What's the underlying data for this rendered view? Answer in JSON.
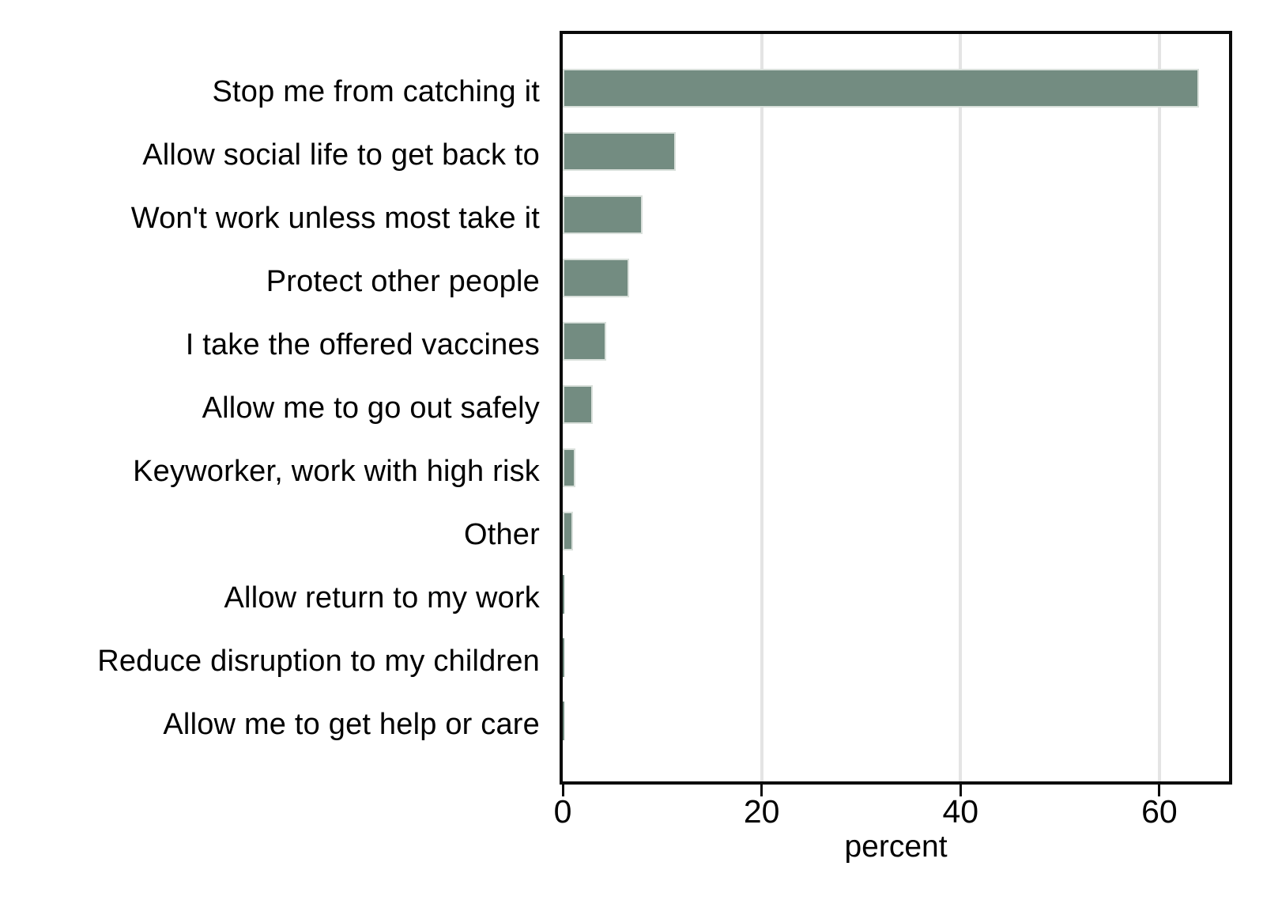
{
  "chart_data": {
    "type": "bar",
    "orientation": "horizontal",
    "title": "",
    "categories": [
      "Stop me from catching it",
      "Allow social life to get back to",
      "Won't work unless most take it",
      "Protect other people",
      "I take the offered vaccines",
      "Allow me to go out safely",
      "Keyworker, work with high risk",
      "Other",
      "Allow return to my work",
      "Reduce disruption to my children",
      "Allow me to get help or care"
    ],
    "values": [
      64,
      11.4,
      8,
      6.7,
      4.4,
      3,
      1.3,
      1,
      0.15,
      0.1,
      0.1
    ],
    "xlabel": "percent",
    "xticks": [
      "0",
      "20",
      "40",
      "60"
    ],
    "xtick_values": [
      0,
      20,
      40,
      60
    ],
    "xlim": [
      0,
      67
    ],
    "grid": true,
    "legend": "none",
    "bar_color": "#738c81",
    "bar_edge_color": "#d9e0db",
    "grid_color": "#e4e4e4",
    "frame_color": "#0a0a0a"
  }
}
